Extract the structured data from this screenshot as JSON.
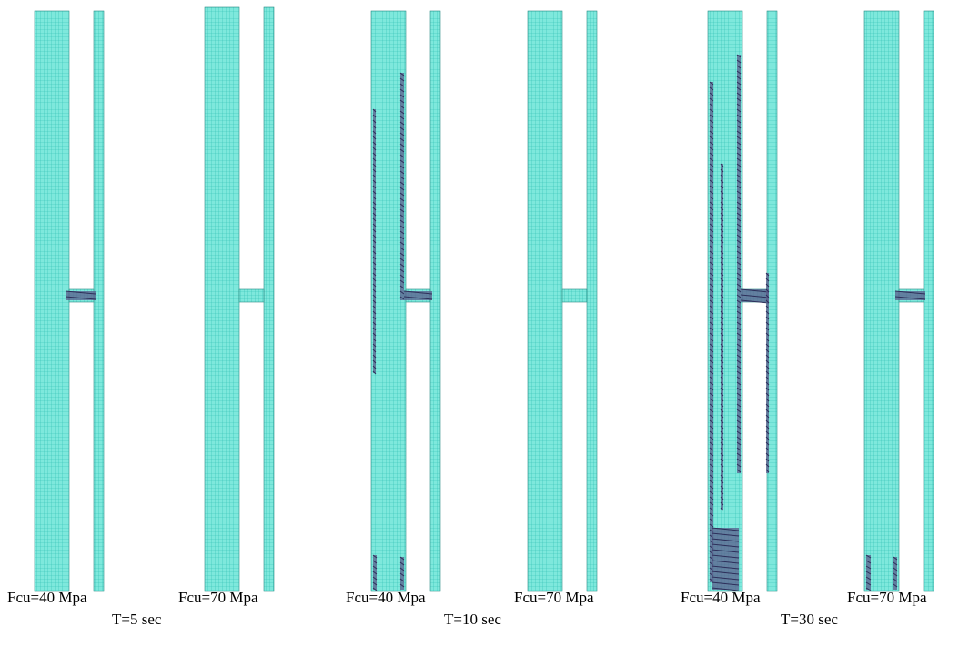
{
  "colors": {
    "mesh_fill": "#7ee8dc",
    "mesh_grid": "#2fbfb2",
    "damage": "#5b5e8c"
  },
  "groups": [
    {
      "time_label": "T=5 sec",
      "models": [
        {
          "label": "Fcu=40 Mpa",
          "damage_level": "low"
        },
        {
          "label": "Fcu=70 Mpa",
          "damage_level": "none"
        }
      ]
    },
    {
      "time_label": "T=10 sec",
      "models": [
        {
          "label": "Fcu=40 Mpa",
          "damage_level": "medium"
        },
        {
          "label": "Fcu=70 Mpa",
          "damage_level": "none"
        }
      ]
    },
    {
      "time_label": "T=30 sec",
      "models": [
        {
          "label": "Fcu=40 Mpa",
          "damage_level": "high"
        },
        {
          "label": "Fcu=70 Mpa",
          "damage_level": "low"
        }
      ]
    }
  ]
}
